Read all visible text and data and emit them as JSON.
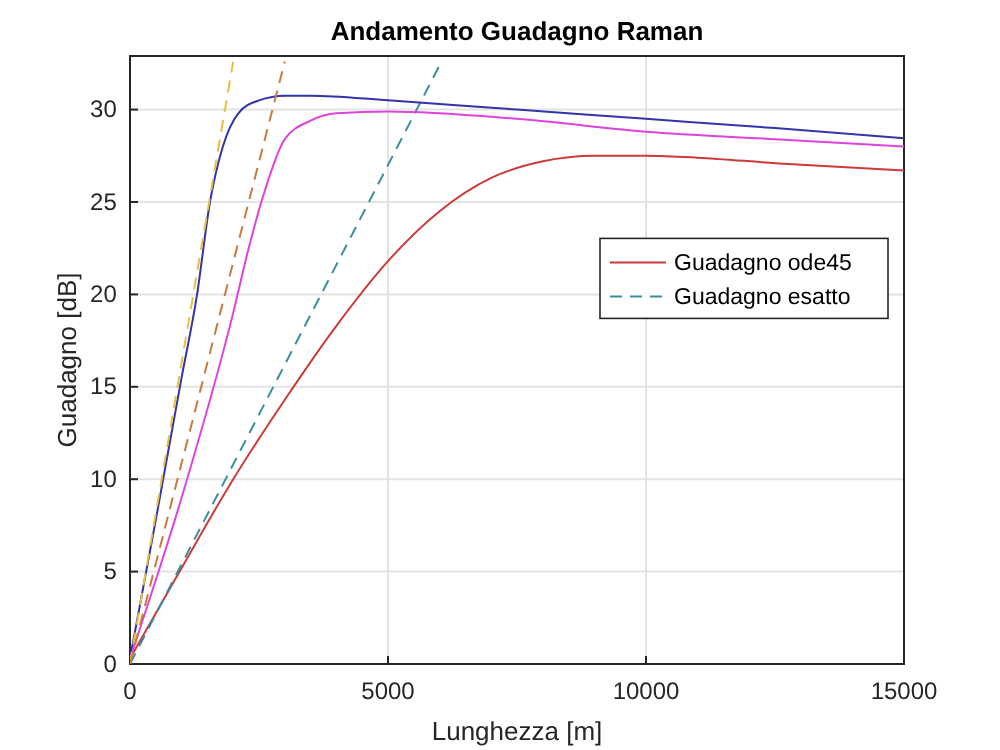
{
  "chart_data": {
    "type": "line",
    "title": "Andamento Guadagno Raman",
    "xlabel": "Lunghezza [m]",
    "ylabel": "Guadagno [dB]",
    "xlim": [
      0,
      15000
    ],
    "ylim": [
      0,
      32.9
    ],
    "xticks": [
      0,
      5000,
      10000,
      15000
    ],
    "yticks": [
      0,
      5,
      10,
      15,
      20,
      25,
      30
    ],
    "grid": true,
    "legend": "right",
    "series": [
      {
        "name": "Guadagno ode45",
        "color": "#cc3a3a",
        "line_style": "solid",
        "x": [
          0,
          1000,
          2000,
          3000,
          4000,
          5000,
          6000,
          7000,
          8000,
          9000,
          10000,
          11000,
          12500,
          15000
        ],
        "values": [
          0.3,
          5.2,
          10,
          14.3,
          18.3,
          21.8,
          24.5,
          26.3,
          27.2,
          27.5,
          27.5,
          27.4,
          27.1,
          26.7
        ]
      },
      {
        "name": "Guadagno esatto",
        "color": "#3a8f9f",
        "line_style": "dashed",
        "x": [
          0,
          6000
        ],
        "values": [
          0,
          32.4
        ]
      },
      {
        "color": "#3333aa",
        "line_style": "solid",
        "x": [
          0,
          500,
          1000,
          1300,
          1550,
          1800,
          2100,
          2500,
          3000,
          3500,
          5000,
          7500,
          10000,
          12500,
          15000
        ],
        "values": [
          0.3,
          7.8,
          15.5,
          20,
          25,
          28,
          29.8,
          30.5,
          30.75,
          30.75,
          30.5,
          30,
          29.5,
          29,
          28.45
        ]
      },
      {
        "color": "#dd44dd",
        "line_style": "solid",
        "x": [
          0,
          1000,
          2000,
          2300,
          2600,
          3000,
          3500,
          4000,
          5000,
          7500,
          10000,
          12500,
          15000
        ],
        "values": [
          0.3,
          9,
          19,
          22.5,
          25.5,
          28.4,
          29.4,
          29.8,
          29.9,
          29.5,
          28.8,
          28.4,
          28
        ]
      },
      {
        "color": "#e8c040",
        "line_style": "dashed",
        "x": [
          0,
          2000
        ],
        "values": [
          0,
          32.6
        ]
      },
      {
        "color": "#c87a40",
        "line_style": "dashed",
        "x": [
          0,
          3000
        ],
        "values": [
          0,
          32.6
        ]
      }
    ]
  }
}
